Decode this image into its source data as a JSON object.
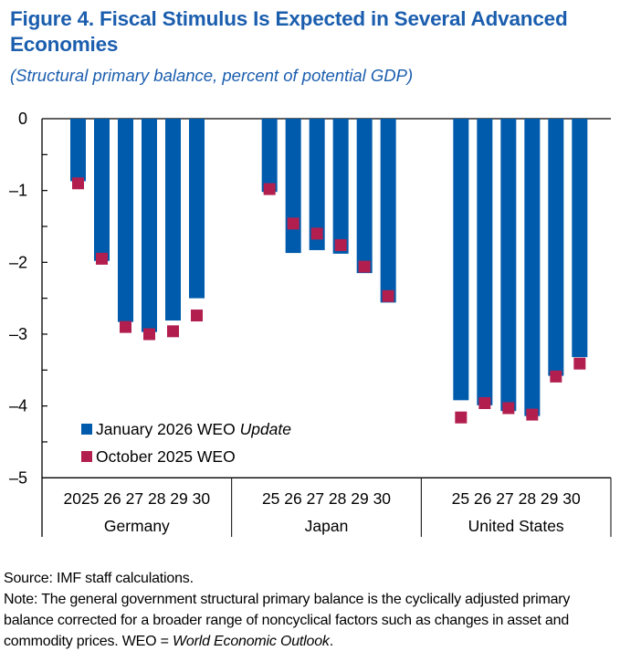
{
  "figure": {
    "title": "Figure 4.  Fiscal Stimulus Is Expected in Several Advanced Economies",
    "subtitle": "(Structural primary balance, percent of potential GDP)"
  },
  "chart_data": {
    "type": "bar",
    "title": "Fiscal Stimulus Is Expected in Several Advanced Economies",
    "ylabel": "Structural primary balance, percent of potential GDP",
    "xlabel": "",
    "ylim": [
      -5,
      0
    ],
    "yticks": [
      0,
      -1,
      -2,
      -3,
      -4,
      -5
    ],
    "ytick_labels": [
      "0",
      "–1",
      "–2",
      "–3",
      "–4",
      "–5"
    ],
    "grid": false,
    "legend_position": "bottom-left",
    "groups": [
      {
        "name": "Germany",
        "tick_labels": [
          "2025",
          "26",
          "27",
          "28",
          "29",
          "30"
        ]
      },
      {
        "name": "Japan",
        "tick_labels": [
          "25",
          "26",
          "27",
          "28",
          "29",
          "30"
        ]
      },
      {
        "name": "United States",
        "tick_labels": [
          "25",
          "26",
          "27",
          "28",
          "29",
          "30"
        ]
      }
    ],
    "series": [
      {
        "name": "January 2026 WEO Update",
        "label_plain": "January 2026 WEO ",
        "label_italic": "Update",
        "kind": "bar",
        "color": "#005BAC",
        "values": [
          [
            -0.87,
            -1.98,
            -2.83,
            -2.97,
            -2.81,
            -2.5
          ],
          [
            -1.02,
            -1.87,
            -1.83,
            -1.88,
            -2.15,
            -2.56
          ],
          [
            -3.92,
            -3.99,
            -4.07,
            -4.14,
            -3.58,
            -3.32
          ]
        ]
      },
      {
        "name": "October 2025 WEO",
        "label_plain": "October 2025 WEO",
        "label_italic": "",
        "kind": "marker",
        "color": "#B21F4F",
        "values": [
          [
            -0.9,
            -1.95,
            -2.9,
            -3.0,
            -2.96,
            -2.74
          ],
          [
            -0.98,
            -1.46,
            -1.6,
            -1.76,
            -2.06,
            -2.47
          ],
          [
            -4.16,
            -3.96,
            -4.03,
            -4.12,
            -3.59,
            -3.41
          ]
        ]
      }
    ]
  },
  "footer": {
    "source": "Source: IMF staff calculations.",
    "note_plain": "Note: The general government structural primary balance is the cyclically adjusted primary balance corrected for a broader range of noncyclical factors such as changes in asset and commodity prices. WEO = ",
    "note_italic": "World Economic Outlook",
    "note_end": "."
  }
}
